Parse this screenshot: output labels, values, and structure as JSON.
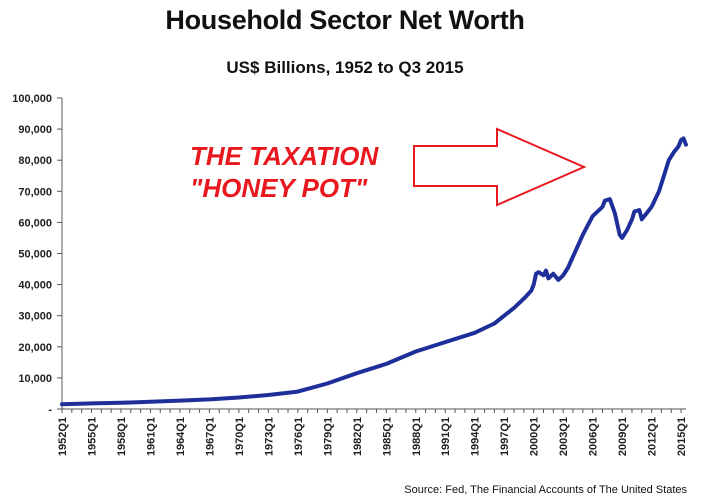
{
  "chart_data": {
    "type": "line",
    "title": "Household Sector Net Worth",
    "subtitle": "US$ Billions, 1952 to Q3 2015",
    "xlabel": "",
    "ylabel": "",
    "ylim": [
      0,
      100000
    ],
    "y_ticks": [
      "-",
      "10,000",
      "20,000",
      "30,000",
      "40,000",
      "50,000",
      "60,000",
      "70,000",
      "80,000",
      "90,000",
      "100,000"
    ],
    "x_ticks": [
      "1952Q1",
      "1955Q1",
      "1958Q1",
      "1961Q1",
      "1964Q1",
      "1967Q1",
      "1970Q1",
      "1973Q1",
      "1976Q1",
      "1979Q1",
      "1982Q1",
      "1985Q1",
      "1988Q1",
      "1991Q1",
      "1994Q1",
      "1997Q1",
      "2000Q1",
      "2003Q1",
      "2006Q1",
      "2009Q1",
      "2012Q1",
      "2015Q1"
    ],
    "x_range": [
      "1952Q1",
      "2015Q3"
    ],
    "grid": false,
    "legend": "none",
    "line_color": "#1f2f9a",
    "series": [
      {
        "x": [
          "1952Q1",
          "1955Q1",
          "1958Q1",
          "1961Q1",
          "1964Q1",
          "1967Q1",
          "1970Q1",
          "1973Q1",
          "1975Q1",
          "1976Q1",
          "1979Q1",
          "1982Q1",
          "1985Q1",
          "1988Q1",
          "1991Q1",
          "1994Q1",
          "1996Q1",
          "1997Q1",
          "1998Q1",
          "1999Q1",
          "1999Q4",
          "2000Q1",
          "2000Q2",
          "2000Q3",
          "2001Q1",
          "2001Q2",
          "2001Q3",
          "2002Q1",
          "2002Q3",
          "2003Q1",
          "2003Q3",
          "2004Q1",
          "2005Q1",
          "2006Q1",
          "2007Q1",
          "2007Q2",
          "2007Q4",
          "2008Q2",
          "2008Q4",
          "2009Q1",
          "2009Q3",
          "2010Q1",
          "2010Q2",
          "2010Q4",
          "2011Q1",
          "2011Q3",
          "2012Q1",
          "2012Q4",
          "2013Q2",
          "2013Q4",
          "2014Q2",
          "2014Q4",
          "2015Q1",
          "2015Q2",
          "2015Q3"
        ],
        "values": [
          1500,
          1800,
          2000,
          2300,
          2700,
          3100,
          3700,
          4500,
          5200,
          5600,
          8200,
          11500,
          14500,
          18500,
          21500,
          24500,
          27500,
          30000,
          32500,
          35500,
          38000,
          40000,
          43500,
          44000,
          43000,
          44500,
          42000,
          43500,
          41500,
          43000,
          45500,
          49000,
          56000,
          62000,
          65000,
          67000,
          67500,
          63000,
          56000,
          55000,
          57500,
          61000,
          63500,
          64000,
          61000,
          63000,
          65000,
          70000,
          75000,
          80000,
          82500,
          84500,
          86500,
          87000,
          85000
        ]
      }
    ]
  },
  "annotation": {
    "line1": "THE TAXATION",
    "line2": "\"HONEY POT\"",
    "color": "#e8181e"
  },
  "source": "Source: Fed, The Financial Accounts of The United States"
}
